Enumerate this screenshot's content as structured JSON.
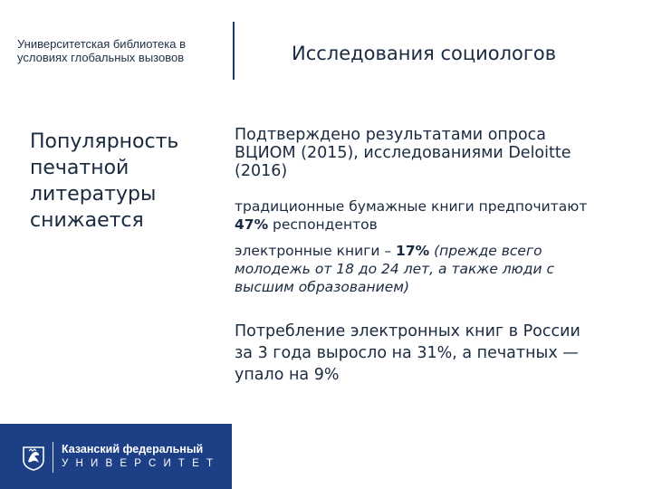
{
  "header": {
    "library_line1": "Университетская библиотека в",
    "library_line2": "условиях глобальных вызовов",
    "title": "Исследования социологов"
  },
  "side_heading": [
    "Популярность",
    "печатной",
    "литературы",
    "снижается"
  ],
  "content": {
    "block1": [
      "Подтверждено  результатами опроса",
      "ВЦИОМ  (2015), исследованиями Deloitte",
      "(2016)"
    ],
    "block2": {
      "line1": "традиционные бумажные книги предпочитают",
      "line2_bold": "47%",
      "line2_rest": " респондентов"
    },
    "block3": {
      "prefix": "электронные книги – ",
      "bold": "17%",
      "italic_start": " (прежде всего",
      "italic_line2": "молодежь от 18 до 24 лет, а также люди с",
      "italic_line3": "высшим образованием)"
    },
    "block4": [
      "Потребление электронных книг в России",
      "за 3 года выросло на 31%, а печатных —",
      "упало на 9%"
    ]
  },
  "footer": {
    "logo_line1": "Казанский федеральный",
    "logo_line2": "УНИВЕРСИТЕТ",
    "logo_icon": "kfu-emblem-icon"
  },
  "colors": {
    "brand_blue": "#1c3f85",
    "divider": "#1b3a78",
    "text": "#1a2a40"
  }
}
